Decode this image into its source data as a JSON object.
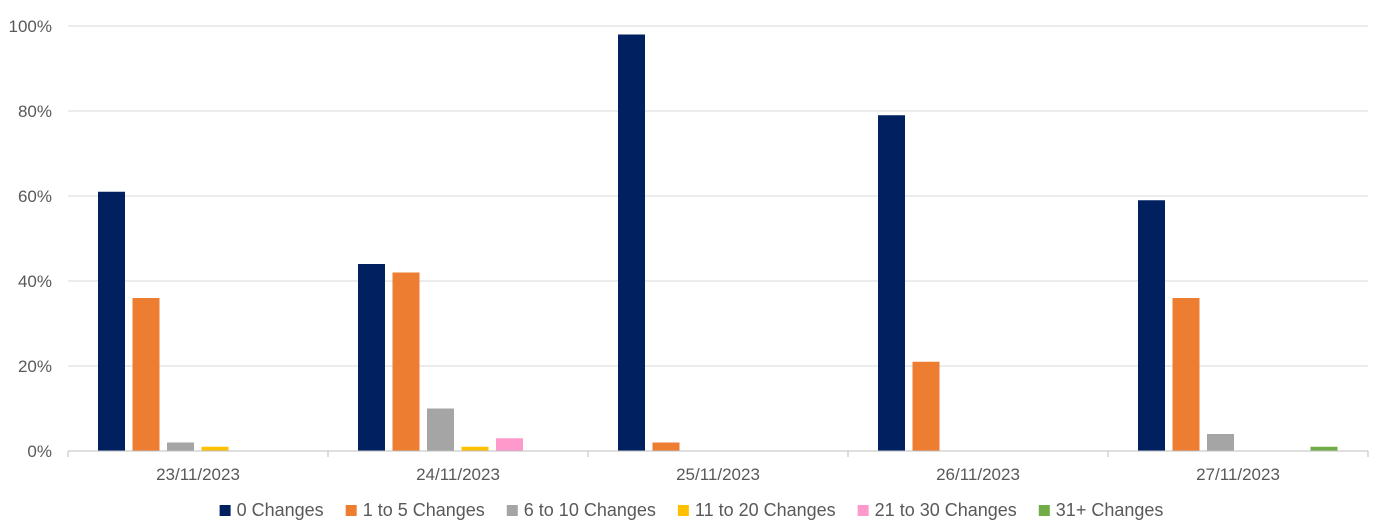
{
  "chart_data": {
    "type": "bar",
    "categories": [
      "23/11/2023",
      "24/11/2023",
      "25/11/2023",
      "26/11/2023",
      "27/11/2023"
    ],
    "series": [
      {
        "name": "0 Changes",
        "color": "#002060",
        "values": [
          61,
          44,
          98,
          79,
          59
        ]
      },
      {
        "name": "1 to 5 Changes",
        "color": "#ED7D31",
        "values": [
          36,
          42,
          2,
          21,
          36
        ]
      },
      {
        "name": "6 to 10 Changes",
        "color": "#A5A5A5",
        "values": [
          2,
          10,
          0,
          0,
          4
        ]
      },
      {
        "name": "11 to 20 Changes",
        "color": "#FFC000",
        "values": [
          1,
          1,
          0,
          0,
          0
        ]
      },
      {
        "name": "21 to 30 Changes",
        "color": "#FF99CC",
        "values": [
          0,
          3,
          0,
          0,
          0
        ]
      },
      {
        "name": "31+ Changes",
        "color": "#70AD47",
        "values": [
          0,
          0,
          0,
          0,
          1
        ]
      }
    ],
    "y_ticks": [
      "0%",
      "20%",
      "40%",
      "60%",
      "80%",
      "100%"
    ],
    "ylim": [
      0,
      100
    ],
    "grid": true,
    "legend": "bottom",
    "title": "",
    "xlabel": "",
    "ylabel": ""
  }
}
